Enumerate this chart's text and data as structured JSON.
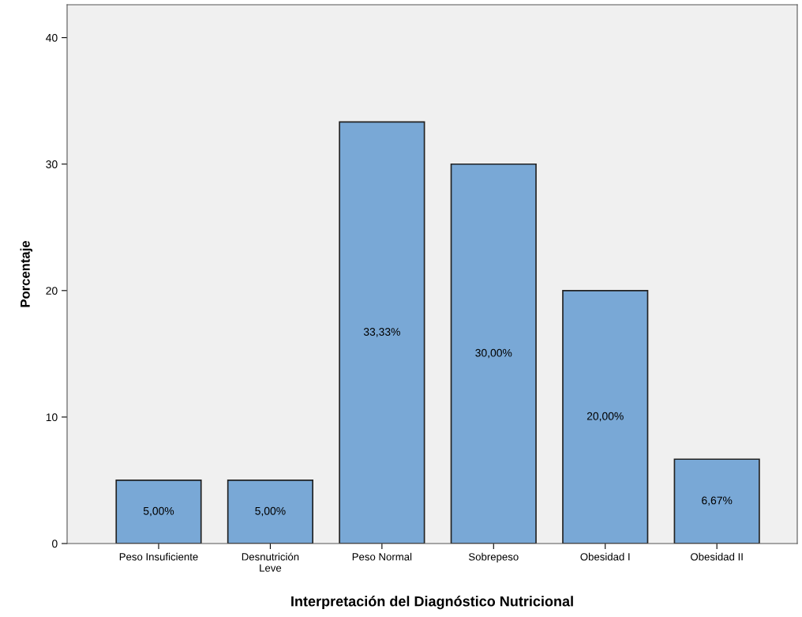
{
  "chart_data": {
    "type": "bar",
    "xlabel": "Interpretación del Diagnóstico Nutricional",
    "ylabel": "Porcentaje",
    "categories": [
      "Peso Insuficiente",
      "Desnutrición\nLeve",
      "Peso Normal",
      "Sobrepeso",
      "Obesidad I",
      "Obesidad II"
    ],
    "values": [
      5,
      5,
      33.33,
      30,
      20,
      6.67
    ],
    "value_labels": [
      "5,00%",
      "5,00%",
      "33,33%",
      "30,00%",
      "20,00%",
      "6,67%"
    ],
    "color": "#79a8d6",
    "ylim": [
      0,
      42.6
    ],
    "yticks": [
      0,
      10,
      20,
      30,
      40
    ],
    "grid": false
  }
}
